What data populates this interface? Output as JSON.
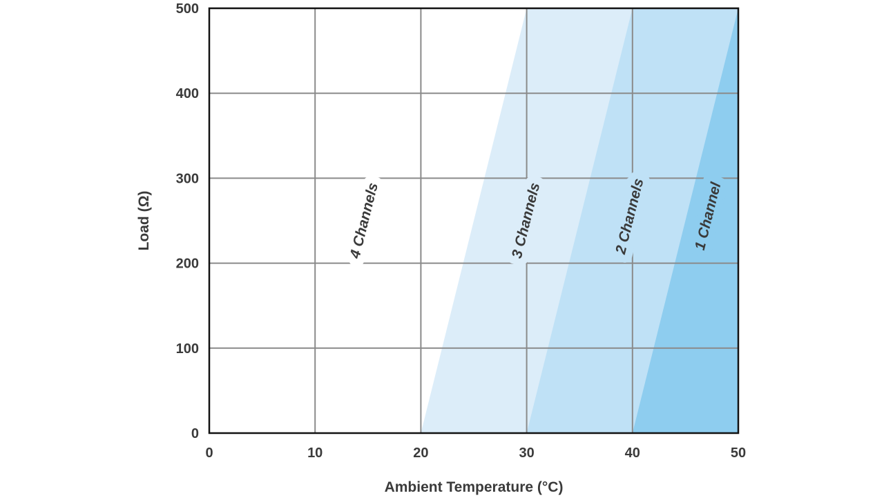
{
  "chart_data": {
    "type": "area",
    "title": "",
    "xlabel": "Ambient Temperature (°C)",
    "ylabel": "Load (Ω)",
    "xlim": [
      0,
      50
    ],
    "ylim": [
      0,
      500
    ],
    "xticks": [
      "0",
      "10",
      "20",
      "30",
      "40",
      "50"
    ],
    "yticks": [
      "0",
      "100",
      "200",
      "300",
      "400",
      "500"
    ],
    "grid": true,
    "regions": [
      {
        "name": "4 Channels",
        "boundary_bottom_x": 0,
        "boundary_top_x": 0,
        "color": "#ffffff",
        "label_at": [
          14.7,
          250
        ]
      },
      {
        "name": "3 Channels",
        "boundary_bottom_x": 20,
        "boundary_top_x": 30,
        "color": "#dcedf9",
        "label_at": [
          30,
          250
        ]
      },
      {
        "name": "2 Channels",
        "boundary_bottom_x": 30,
        "boundary_top_x": 40,
        "color": "#bfe1f6",
        "label_at": [
          39.8,
          255
        ]
      },
      {
        "name": "1 Channel",
        "boundary_bottom_x": 40,
        "boundary_top_x": 50,
        "color": "#8ecdef",
        "label_at": [
          47.2,
          255
        ]
      }
    ]
  }
}
